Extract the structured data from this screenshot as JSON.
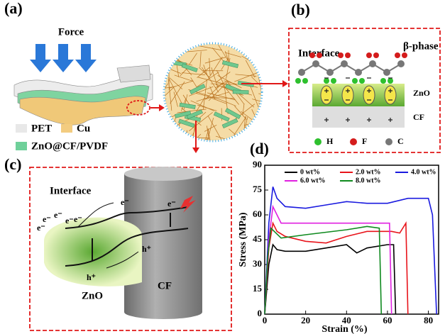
{
  "panel_a": {
    "label": "(a)",
    "force": "Force",
    "legend": [
      "PET",
      "Cu",
      "ZnO@CF/PVDF"
    ]
  },
  "panel_b": {
    "label": "(b)",
    "interface": "Interface",
    "phase": "β-phase",
    "layers": [
      "ZnO",
      "CF"
    ],
    "atoms": [
      "H",
      "F",
      "C"
    ]
  },
  "panel_c": {
    "label": "(c)",
    "interface": "Interface",
    "electrons": [
      "e⁻",
      "e⁻",
      "e⁻",
      "e⁻",
      "e⁻",
      "e⁻",
      "e⁻"
    ],
    "holes": [
      "h⁺",
      "h⁺"
    ],
    "zno": "ZnO",
    "cf": "CF"
  },
  "chart_data": {
    "type": "line",
    "label": "(d)",
    "x_label": "Strain (%)",
    "y_label": "Stress (MPa)",
    "xlim": [
      0,
      85
    ],
    "xticks": [
      0,
      20,
      40,
      60,
      80
    ],
    "ylim": [
      0,
      90
    ],
    "yticks": [
      0,
      15,
      30,
      45,
      60,
      75,
      90
    ],
    "series": [
      {
        "name": "0 wt%",
        "color": "#000000",
        "x": [
          0,
          2,
          4,
          6,
          10,
          20,
          30,
          40,
          45,
          50,
          60,
          63,
          64
        ],
        "values": [
          0,
          30,
          42,
          39,
          38,
          38,
          40,
          42,
          37,
          40,
          42,
          42,
          0
        ]
      },
      {
        "name": "2.0 wt%",
        "color": "#e8141b",
        "x": [
          0,
          2,
          4,
          6,
          10,
          20,
          30,
          40,
          50,
          62,
          66,
          69,
          70
        ],
        "values": [
          0,
          40,
          55,
          50,
          47,
          44,
          43,
          47,
          50,
          50,
          49,
          55,
          0
        ]
      },
      {
        "name": "4.0 wt%",
        "color": "#1a1adf",
        "x": [
          0,
          2,
          4,
          6,
          10,
          20,
          30,
          40,
          50,
          60,
          70,
          80,
          82,
          84
        ],
        "values": [
          0,
          55,
          77,
          70,
          65,
          64,
          66,
          68,
          67,
          67,
          70,
          70,
          60,
          0
        ]
      },
      {
        "name": "6.0 wt%",
        "color": "#e020e0",
        "x": [
          0,
          2,
          4,
          8,
          20,
          40,
          55,
          61,
          62
        ],
        "values": [
          0,
          45,
          65,
          55,
          55,
          55,
          55,
          55,
          0
        ]
      },
      {
        "name": "8.0 wt%",
        "color": "#0f8a1f",
        "x": [
          0,
          1.5,
          3,
          8,
          20,
          40,
          50,
          56,
          57
        ],
        "values": [
          0,
          35,
          52,
          46,
          48,
          51,
          53,
          52,
          0
        ]
      }
    ]
  }
}
